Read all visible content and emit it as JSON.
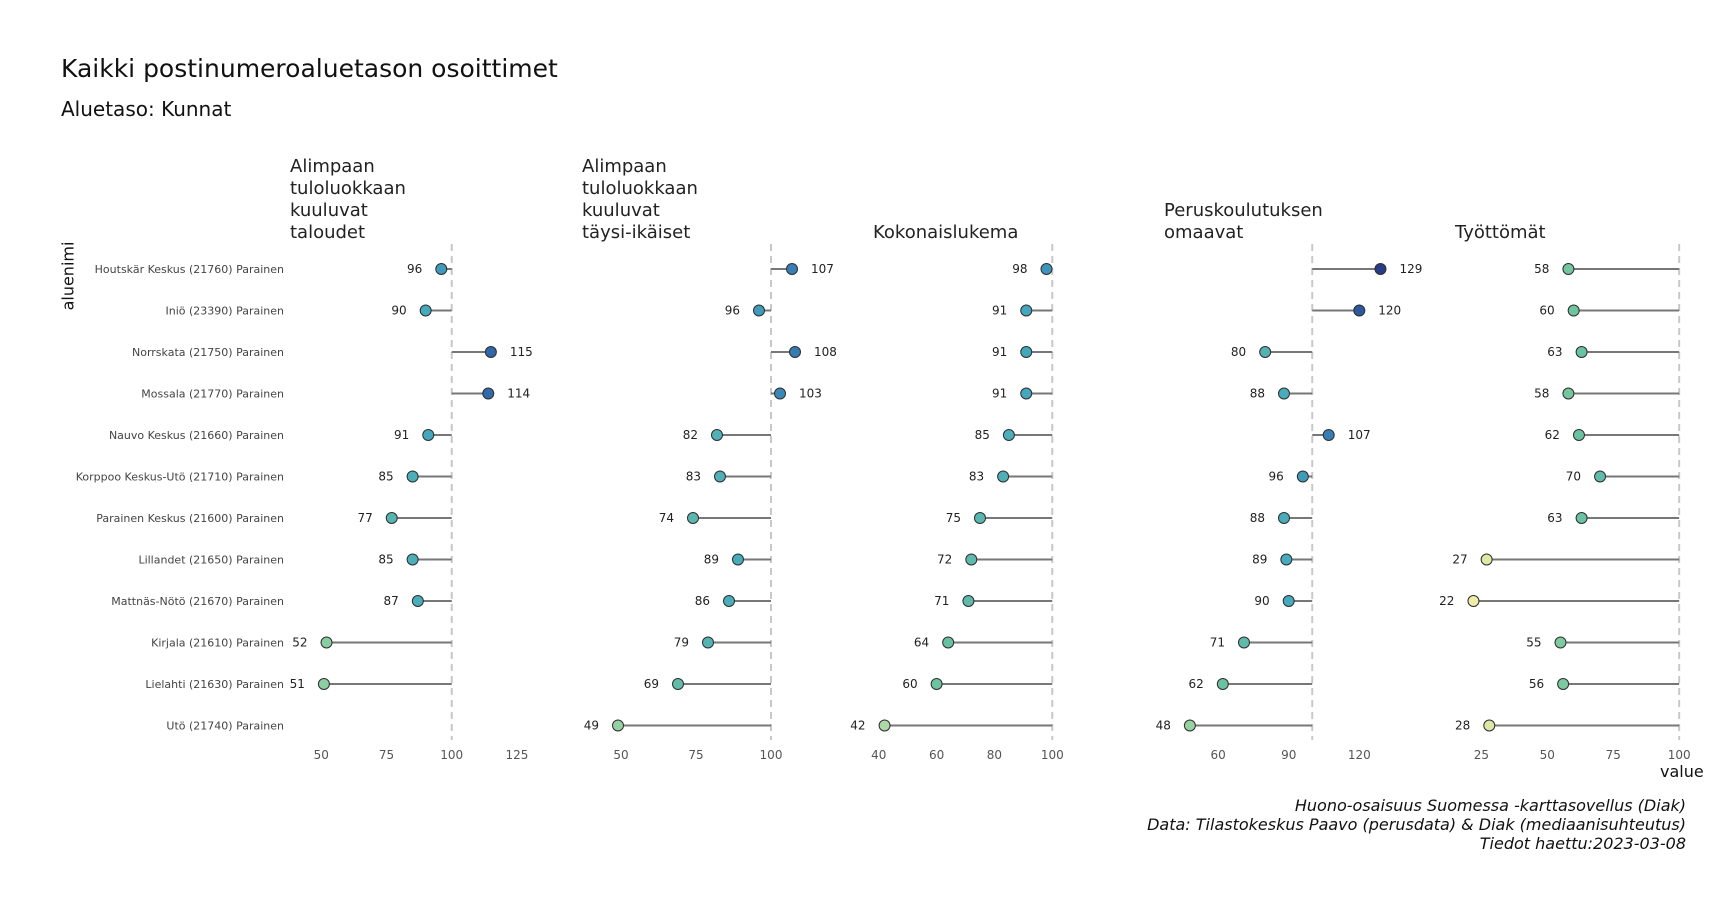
{
  "title": "Kaikki postinumeroaluetason osoittimet",
  "subtitle": "Aluetaso: Kunnat",
  "ylabel": "aluenimi",
  "xlabel": "value",
  "caption": [
    "Huono-osaisuus Suomessa -karttasovellus (Diak)",
    "Data: Tilastokeskus Paavo (perusdata) & Diak (mediaanisuhteutus)",
    "Tiedot haettu:2023-03-08"
  ],
  "chart_data": {
    "type": "lollipop",
    "reference_value": 100,
    "categories": [
      "Houtskär Keskus (21760) Parainen",
      "Iniö (23390) Parainen",
      "Norrskata (21750) Parainen",
      "Mossala (21770) Parainen",
      "Nauvo Keskus (21660) Parainen",
      "Korppoo Keskus-Utö (21710) Parainen",
      "Parainen Keskus (21600) Parainen",
      "Lillandet (21650) Parainen",
      "Mattnäs-Nötö (21670) Parainen",
      "Kirjala (21610) Parainen",
      "Lielahti (21630) Parainen",
      "Utö (21740) Parainen"
    ],
    "panels": [
      {
        "title": "Alimpaan tuloluokkaan kuuluvat taloudet",
        "title_lines": [
          "Alimpaan",
          "tuloluokkaan",
          "kuuluvat",
          "taloudet"
        ],
        "xlim": [
          38,
          130
        ],
        "ticks": [
          50,
          75,
          100,
          125
        ],
        "values": [
          96,
          90,
          115,
          114,
          91,
          85,
          77,
          85,
          87,
          52,
          51,
          null
        ]
      },
      {
        "title": "Alimpaan tuloluokkaan kuuluvat täysi-ikäiset",
        "title_lines": [
          "Alimpaan",
          "tuloluokkaan",
          "kuuluvat",
          "täysi-ikäiset"
        ],
        "xlim": [
          37,
          117
        ],
        "ticks": [
          50,
          75,
          100
        ],
        "values": [
          107,
          96,
          108,
          103,
          82,
          83,
          74,
          89,
          86,
          79,
          69,
          49
        ]
      },
      {
        "title": "Kokonaislukema",
        "title_lines": [
          "Kokonaislukema"
        ],
        "xlim": [
          38,
          121
        ],
        "ticks": [
          40,
          60,
          80,
          100
        ],
        "values": [
          98,
          91,
          91,
          91,
          85,
          83,
          75,
          72,
          71,
          64,
          60,
          42
        ]
      },
      {
        "title": "Peruskoulutuksen omaavat",
        "title_lines": [
          "Peruskoulutuksen",
          "omaavat"
        ],
        "xlim": [
          37,
          139
        ],
        "ticks": [
          60,
          90,
          120
        ],
        "values": [
          129,
          120,
          80,
          88,
          107,
          96,
          88,
          89,
          90,
          71,
          62,
          48
        ]
      },
      {
        "title": "Työttömät",
        "title_lines": [
          "Työttömät"
        ],
        "xlim": [
          15,
          106
        ],
        "ticks": [
          25,
          50,
          75,
          100
        ],
        "values": [
          58,
          60,
          63,
          58,
          62,
          70,
          63,
          27,
          22,
          55,
          56,
          28
        ]
      }
    ]
  }
}
